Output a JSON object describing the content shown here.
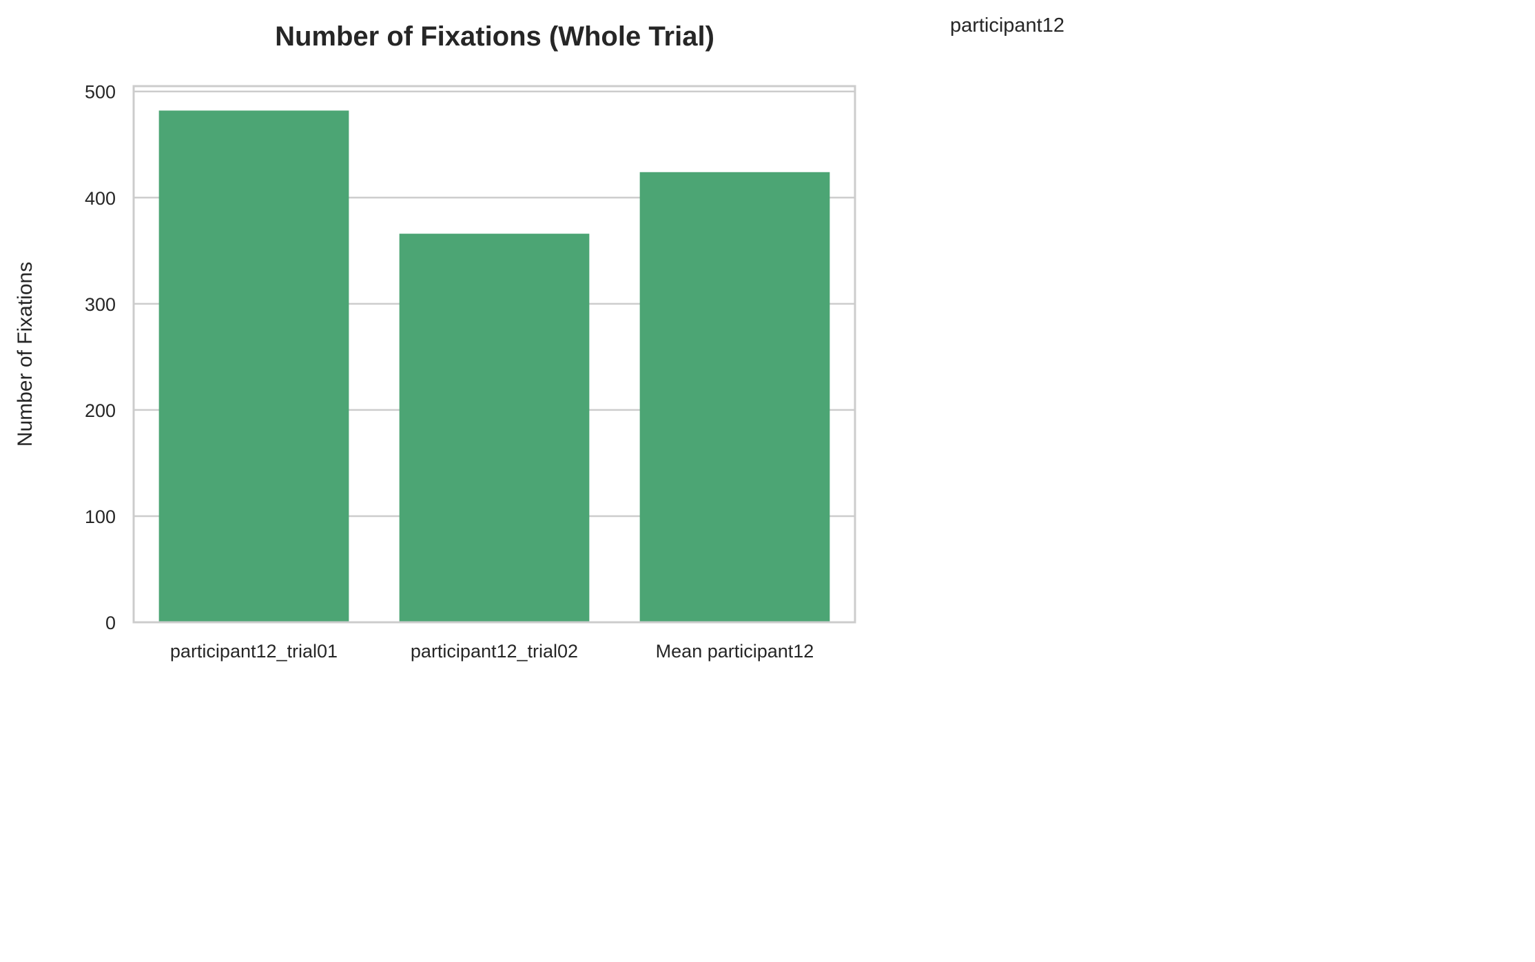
{
  "chart_data": {
    "type": "bar",
    "title": "Number of Fixations (Whole Trial)",
    "corner_label": "participant12",
    "ylabel": "Number of Fixations",
    "xlabel": "",
    "categories": [
      "participant12_trial01",
      "participant12_trial02",
      "Mean participant12"
    ],
    "values": [
      482,
      366,
      424
    ],
    "ylim": [
      0,
      505
    ],
    "yticks": [
      "0",
      "100",
      "200",
      "300",
      "400",
      "500"
    ],
    "grid": true,
    "bar_color": "#4ca574",
    "grid_color": "#cccccc",
    "frame_color": "#cccccc"
  }
}
